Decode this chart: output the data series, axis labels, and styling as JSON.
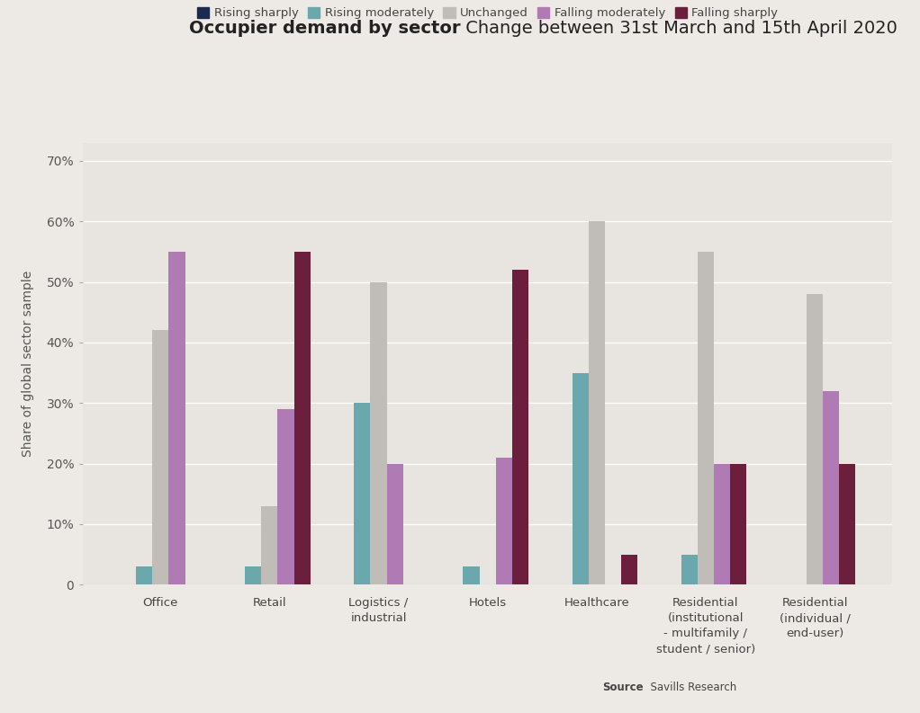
{
  "title_bold": "Occupier demand by sector",
  "title_regular": " Change between 31st March and 15th April 2020",
  "ylabel": "Share of global sector sample",
  "source_bold": "Source",
  "source_regular": "  Savills Research",
  "background_color": "#edeae5",
  "plot_background_color": "#e8e4df",
  "categories": [
    "Office",
    "Retail",
    "Logistics /\nindustrial",
    "Hotels",
    "Healthcare",
    "Residential\n(institutional\n- multifamily /\nstudent / senior)",
    "Residential\n(individual /\nend-user)"
  ],
  "legend_labels": [
    "Rising sharply",
    "Rising moderately",
    "Unchanged",
    "Falling moderately",
    "Falling sharply"
  ],
  "colors": {
    "rising_sharply": "#1c2951",
    "rising_moderately": "#6ba8ad",
    "unchanged": "#c0bdb8",
    "falling_moderately": "#b07ab5",
    "falling_sharply": "#6b1f3c"
  },
  "data": {
    "rising_sharply": [
      0,
      0,
      0,
      0,
      0,
      0,
      0
    ],
    "rising_moderately": [
      3,
      3,
      30,
      3,
      35,
      5,
      0
    ],
    "unchanged": [
      42,
      13,
      50,
      0,
      60,
      55,
      48
    ],
    "falling_moderately": [
      55,
      29,
      20,
      21,
      0,
      20,
      32
    ],
    "falling_sharply": [
      0,
      55,
      0,
      52,
      5,
      20,
      20
    ]
  },
  "ylim": [
    0,
    73
  ],
  "yticks": [
    0,
    10,
    20,
    30,
    40,
    50,
    60,
    70
  ],
  "bar_width": 0.15,
  "title_fontsize": 14,
  "ylabel_fontsize": 10,
  "tick_fontsize": 10,
  "legend_fontsize": 9.5
}
